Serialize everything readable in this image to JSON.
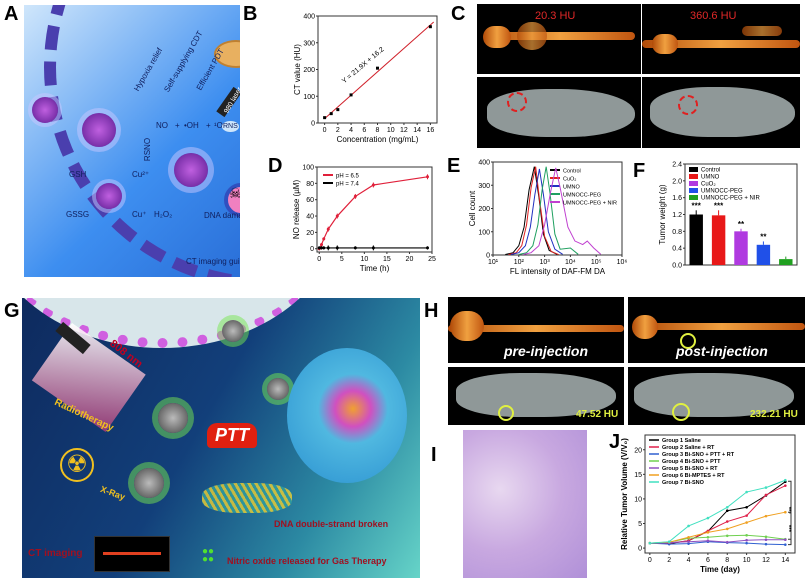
{
  "panels": {
    "A": "A",
    "B": "B",
    "C": "C",
    "D": "D",
    "E": "E",
    "F": "F",
    "G": "G",
    "H": "H",
    "I": "I",
    "J": "J"
  },
  "panelA": {
    "labels": {
      "hypoxia": "Hypoxia relief",
      "cdt": "Self-supplying CDT",
      "pdt": "Efficient PDT",
      "laser": "980 laser",
      "no": "NO",
      "oh": "•OH",
      "o2": "¹O₂",
      "plus1": "+",
      "plus2": "+",
      "rns": "RNS",
      "rsno": "RSNO",
      "gsh": "GSH",
      "gssg": "GSSG",
      "cu2": "Cu²⁺",
      "cu1": "Cu⁺",
      "h2o2": "H₂O₂",
      "dna": "DNA damage",
      "ct": "CT imaging guided"
    },
    "icons": [
      "nanoparticle-icon",
      "mitochondria-icon",
      "laser-icon",
      "skull-icon",
      "cell-nucleus-icon"
    ]
  },
  "panelC": {
    "hu_left": "20.3 HU",
    "hu_right": "360.6 HU"
  },
  "panelG": {
    "laser": "808 nm",
    "ptt": "PTT",
    "radiotherapy": "Radiotherapy",
    "xray": "X-Ray",
    "dna": "DNA double-strand broken",
    "no": "Nitric oxide released for Gas Therapy",
    "ct": "CT imaging"
  },
  "panelH": {
    "pre": "pre-injection",
    "post": "post-injection",
    "hu_left": "47.52 HU",
    "hu_right": "232.21 HU"
  },
  "chart_data": [
    {
      "id": "B",
      "type": "scatter",
      "xlabel": "Concentration (mg/mL)",
      "ylabel": "CT value (HU)",
      "xlim": [
        -1,
        17
      ],
      "ylim": [
        0,
        400
      ],
      "xticks": [
        0,
        2,
        4,
        6,
        8,
        10,
        12,
        14,
        16
      ],
      "yticks": [
        0,
        100,
        200,
        300,
        400
      ],
      "series": [
        {
          "x": [
            0,
            1,
            2,
            4,
            8,
            16
          ],
          "y": [
            20,
            35,
            50,
            105,
            205,
            360
          ],
          "color": "#000000"
        }
      ],
      "fit": {
        "slope": 21.9,
        "intercept": 16.2,
        "label": "Y = 21.9X + 16.2",
        "color": "#d0202a"
      }
    },
    {
      "id": "D",
      "type": "line",
      "xlabel": "Time (h)",
      "ylabel": "NO release (µM)",
      "xlim": [
        -0.5,
        25
      ],
      "ylim": [
        -4,
        100
      ],
      "xticks": [
        0,
        5,
        10,
        15,
        20,
        25
      ],
      "yticks": [
        0,
        20,
        40,
        60,
        80,
        100
      ],
      "legend": "top-left",
      "series": [
        {
          "name": "pH = 6.5",
          "color": "#e0203a",
          "x": [
            0,
            0.5,
            1,
            2,
            4,
            8,
            12,
            24
          ],
          "y": [
            0,
            5,
            12,
            24,
            40,
            64,
            78,
            88
          ],
          "err": [
            2,
            2,
            2,
            3,
            3,
            3,
            3,
            3
          ]
        },
        {
          "name": "pH = 7.4",
          "color": "#000000",
          "x": [
            0,
            0.5,
            1,
            2,
            4,
            8,
            12,
            24
          ],
          "y": [
            1,
            1,
            1,
            1,
            1,
            1,
            1,
            1
          ],
          "err": [
            2,
            2,
            2,
            3,
            3,
            2,
            3,
            2
          ]
        }
      ]
    },
    {
      "id": "E",
      "type": "line",
      "xscale": "log",
      "xlabel": "FL intensity of DAF-FM DA",
      "ylabel": "Cell count",
      "xlim": [
        10,
        1000000
      ],
      "ylim": [
        0,
        400
      ],
      "xticklabels": [
        "10¹",
        "10²",
        "10³",
        "10⁴",
        "10⁵",
        "10⁶"
      ],
      "yticks": [
        0,
        100,
        200,
        300,
        400
      ],
      "legend": "top-right",
      "series": [
        {
          "name": "Control",
          "color": "#000000",
          "x": [
            30,
            60,
            100,
            160,
            250,
            400,
            600,
            900,
            1500,
            3000
          ],
          "y": [
            2,
            10,
            40,
            120,
            280,
            380,
            250,
            90,
            20,
            3
          ]
        },
        {
          "name": "CuO₂",
          "color": "#e02020",
          "x": [
            40,
            80,
            130,
            200,
            300,
            450,
            650,
            1000,
            1800,
            3500
          ],
          "y": [
            2,
            10,
            40,
            130,
            290,
            380,
            230,
            80,
            15,
            2
          ]
        },
        {
          "name": "UMNO",
          "color": "#2030c0",
          "x": [
            50,
            100,
            180,
            280,
            420,
            630,
            900,
            1400,
            2500,
            5000
          ],
          "y": [
            2,
            10,
            40,
            120,
            260,
            370,
            260,
            100,
            25,
            3
          ]
        },
        {
          "name": "UMNOCC-PEG",
          "color": "#20a060",
          "x": [
            100,
            200,
            350,
            550,
            800,
            1150,
            1600,
            2500,
            4000,
            10000,
            20000
          ],
          "y": [
            2,
            10,
            40,
            130,
            280,
            380,
            270,
            90,
            25,
            30,
            3
          ]
        },
        {
          "name": "UMNOCC-PEG + NIR",
          "color": "#c040d0",
          "x": [
            150,
            300,
            600,
            1000,
            1700,
            2700,
            4000,
            8000,
            15000,
            30000,
            45000,
            80000,
            150000
          ],
          "y": [
            2,
            10,
            40,
            130,
            270,
            375,
            290,
            120,
            60,
            45,
            60,
            30,
            3
          ]
        }
      ]
    },
    {
      "id": "F",
      "type": "bar",
      "ylabel": "Tumor weight (g)",
      "ylim": [
        0,
        2.4
      ],
      "yticks": [
        0.0,
        0.4,
        0.8,
        1.2,
        1.6,
        2.0,
        2.4
      ],
      "legend": "top-left",
      "categories": [
        "Control",
        "UMNO",
        "CuO₂",
        "UMNOCC-PEG",
        "UMNOCC-PEG + NIR"
      ],
      "values": [
        1.2,
        1.18,
        0.8,
        0.48,
        0.14
      ],
      "errors": [
        0.1,
        0.12,
        0.06,
        0.08,
        0.06
      ],
      "significance": [
        "***",
        "***",
        "**",
        "**",
        ""
      ],
      "colors": [
        "#000000",
        "#e81818",
        "#b03ae0",
        "#2050e8",
        "#20a020"
      ]
    },
    {
      "id": "J",
      "type": "line",
      "xlabel": "Time (day)",
      "ylabel": "Relative Tumor Volume (V/V₀)",
      "xlim": [
        -0.5,
        15
      ],
      "ylim": [
        -1,
        23
      ],
      "xticks": [
        0,
        2,
        4,
        6,
        8,
        10,
        12,
        14
      ],
      "yticks": [
        0,
        5,
        10,
        15,
        20
      ],
      "legend": "top-left",
      "significance": [
        "***",
        "***"
      ],
      "x": [
        0,
        2,
        4,
        6,
        8,
        10,
        12,
        14
      ],
      "series": [
        {
          "name": "Group 1 Saline",
          "color": "#000000",
          "y": [
            1,
            0.9,
            1.5,
            3.4,
            7.6,
            8.3,
            10.7,
            13.5
          ]
        },
        {
          "name": "Group 2 Saline + RT",
          "color": "#e0204a",
          "y": [
            1,
            1,
            1.5,
            3.5,
            5.4,
            6.6,
            10.8,
            12.7
          ]
        },
        {
          "name": "Group 3 Bi-SNO + PTT + RT",
          "color": "#3060d0",
          "y": [
            1,
            0.8,
            0.9,
            1.3,
            1.1,
            1,
            0.8,
            0.7
          ]
        },
        {
          "name": "Group 4 Bi-SNO + PTT",
          "color": "#70d050",
          "y": [
            1,
            1.2,
            2,
            2.2,
            2.5,
            2.6,
            2.3,
            1.8
          ]
        },
        {
          "name": "Group 5 Bi-SNO + RT",
          "color": "#9050c0",
          "y": [
            1,
            1.1,
            1.3,
            1.5,
            1.2,
            1.6,
            1.7,
            1.7
          ]
        },
        {
          "name": "Group 6 Bi-MPTES + RT",
          "color": "#f0a020",
          "y": [
            1,
            1.2,
            2.2,
            3.2,
            3.9,
            5.2,
            6.5,
            7.3
          ]
        },
        {
          "name": "Group 7 Bi-SNO",
          "color": "#40e0c0",
          "y": [
            1,
            1.3,
            4.5,
            6.1,
            8.3,
            11.4,
            12.3,
            13.8
          ]
        }
      ]
    }
  ]
}
